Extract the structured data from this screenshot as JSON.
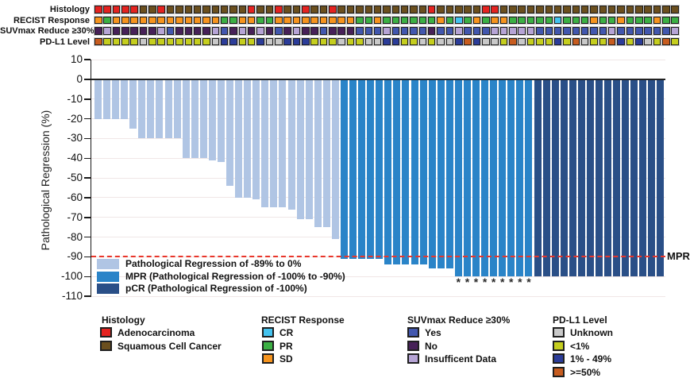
{
  "colors": {
    "adeno_red": "#e42320",
    "squamous_brown": "#6b4f1e",
    "sd_orange": "#f6941e",
    "pr_green": "#3cb044",
    "cr_cyan": "#44c3ef",
    "yes_blue": "#4257ae",
    "no_purple": "#472158",
    "insuf_lavender": "#b6a4d5",
    "unknown_gray": "#c9c9c9",
    "lt1_yellow": "#c5ce1e",
    "b1to49_blue": "#2b3c99",
    "ge50_orange": "#c75c1f",
    "bar_light": "#b0c5e4",
    "bar_mpr": "#2a84c8",
    "bar_pcr": "#2a4f87",
    "ref_red": "#e8362b",
    "grid": "#f0e6e6",
    "axis": "#1a1a1a"
  },
  "tracks": {
    "rows": [
      {
        "label": "Histology",
        "key": "histology",
        "map": {
          "A": "adeno_red",
          "S": "squamous_brown"
        },
        "cells": "AAAAASSASSSSSSSSSASSASSASSASSSSSSSSSSASSSSSAASSSSSSSSSSSSSSSSSSSS"
      },
      {
        "label": "RECIST Response",
        "key": "recist-response",
        "map": {
          "O": "sd_orange",
          "G": "pr_green",
          "C": "cr_cyan"
        },
        "cells": "OGOOOOOOOOOOOOGGOOGGOOOOOOOOOGGOGGGGGGOGCGOGOOGGGGGCGGGOGGOGGGOGG"
      },
      {
        "label": "SUVmax Reduce ≥30%",
        "key": "suvmax-reduce",
        "map": {
          "B": "yes_blue",
          "P": "no_purple",
          "L": "insuf_lavender"
        },
        "cells": "PLPPPPPLBPPPPLBPLPLPBPLPPBPPPBBBLBBBBPBBLBBBLLLLLBBBBBBBBLBBBBBBL"
      },
      {
        "label": "PD-L1 Level",
        "key": "pdl1-level",
        "map": {
          "U": "unknown_gray",
          "Y": "lt1_yellow",
          "B": "b1to49_blue",
          "O": "ge50_orange"
        },
        "cells": "OYYYYUYYYYYYYUBBYYBUUBBBYYYUYYUUBBYYUYUUBOBUUYOUYYYBYOUYYOBYBUYOY"
      }
    ]
  },
  "chart_data": {
    "type": "bar",
    "title": "",
    "xlabel": "",
    "ylabel": "Pathological Regression (%)",
    "ylim": [
      -110,
      10
    ],
    "yticks": [
      10,
      0,
      -10,
      -20,
      -30,
      -40,
      -50,
      -60,
      -70,
      -80,
      -90,
      -100,
      -110
    ],
    "grid": "horizontal-light",
    "n_bars": 65,
    "values": [
      -20,
      -20,
      -20,
      -20,
      -25,
      -30,
      -30,
      -30,
      -30,
      -30,
      -40,
      -40,
      -40,
      -41,
      -42,
      -54,
      -60,
      -60,
      -61,
      -65,
      -65,
      -65,
      -66,
      -71,
      -71,
      -75,
      -75,
      -81,
      -91,
      -91,
      -91,
      -91,
      -91,
      -94,
      -94,
      -94,
      -94,
      -94,
      -96,
      -96,
      -96,
      -100,
      -100,
      -100,
      -100,
      -100,
      -100,
      -100,
      -100,
      -100,
      -100,
      -100,
      -100,
      -100,
      -100,
      -100,
      -100,
      -100,
      -100,
      -100,
      -100,
      -100,
      -100,
      -100,
      -100
    ],
    "classes": "LLLLLLLLLLLLLLLLLLLLLLLLLLLLMMMMMMMMMMMMMMMMMMMMMMPPPPPPPPPPPPPPP",
    "class_map": {
      "L": "bar_light",
      "M": "bar_mpr",
      "P": "bar_pcr"
    },
    "asterisk_indices": [
      41,
      42,
      43,
      44,
      45,
      46,
      47,
      48,
      49
    ],
    "asterisk_glyph": "*",
    "reference_line": {
      "value": -90,
      "label": "MPR"
    }
  },
  "plot_legend": {
    "items": [
      {
        "label": "Pathological Regression of -89% to 0%",
        "color_key": "bar_light"
      },
      {
        "label": "MPR (Pathological Regression of -100% to -90%)",
        "color_key": "bar_mpr"
      },
      {
        "label": "pCR (Pathological Regression of -100%)",
        "color_key": "bar_pcr"
      }
    ]
  },
  "legend_groups": [
    {
      "title": "Histology",
      "key": "histology",
      "items": [
        {
          "label": "Adenocarcinoma",
          "color_key": "adeno_red"
        },
        {
          "label": "Squamous Cell Cancer",
          "color_key": "squamous_brown"
        }
      ]
    },
    {
      "title": "RECIST Response",
      "key": "recist-response",
      "items": [
        {
          "label": "CR",
          "color_key": "cr_cyan"
        },
        {
          "label": "PR",
          "color_key": "pr_green"
        },
        {
          "label": "SD",
          "color_key": "sd_orange"
        }
      ]
    },
    {
      "title": "SUVmax Reduce ≥30%",
      "key": "suvmax-reduce",
      "items": [
        {
          "label": "Yes",
          "color_key": "yes_blue"
        },
        {
          "label": "No",
          "color_key": "no_purple"
        },
        {
          "label": "Insufficent Data",
          "color_key": "insuf_lavender"
        }
      ]
    },
    {
      "title": "PD-L1 Level",
      "key": "pdl1-level",
      "items": [
        {
          "label": "Unknown",
          "color_key": "unknown_gray"
        },
        {
          "label": "<1%",
          "color_key": "lt1_yellow"
        },
        {
          "label": "1% - 49%",
          "color_key": "b1to49_blue"
        },
        {
          "label": ">=50%",
          "color_key": "ge50_orange"
        }
      ]
    }
  ]
}
